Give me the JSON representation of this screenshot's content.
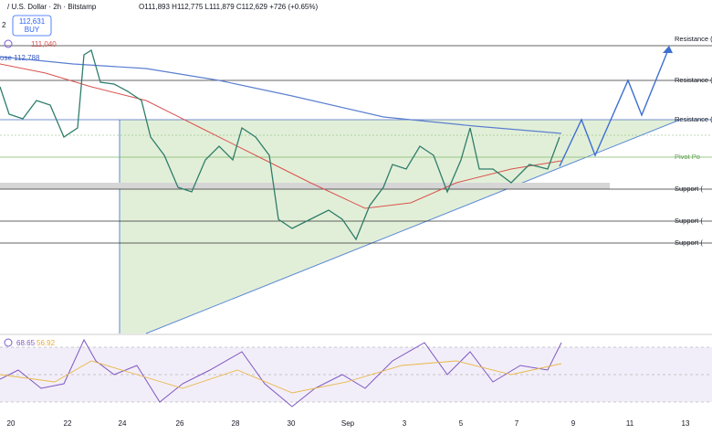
{
  "header": {
    "symbol": "/ U.S. Dollar · 2h · Bitstamp",
    "ohlc": "O111,893 H112,775 L111,879 C112,629 +726 (+0.65%)",
    "badge_left": "2",
    "buy_price": "112,631",
    "buy_label": "BUY"
  },
  "indicators": {
    "ma_red": "111,040",
    "ma_blue": "ose 112,788"
  },
  "levels": [
    "Resistance (",
    "Resistance (",
    "Resistance (",
    "Pivot Po",
    "Support (",
    "Support (",
    "Support ("
  ],
  "rsi": {
    "value": "68.65",
    "ma": "56.92"
  },
  "x_axis": [
    "20",
    "22",
    "24",
    "26",
    "28",
    "30",
    "Sep",
    "3",
    "5",
    "7",
    "9",
    "11",
    "13"
  ]
}
